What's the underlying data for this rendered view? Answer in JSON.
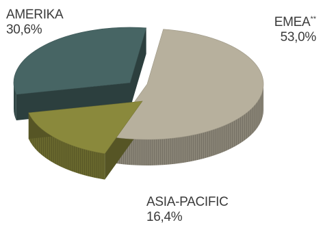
{
  "chart_data": {
    "type": "pie",
    "title": "",
    "slices": [
      {
        "name": "EMEA",
        "marker": "**",
        "value": 53.0,
        "display": "53,0%",
        "color": "#b7b09d"
      },
      {
        "name": "ASIA-PACIFIC",
        "value": 16.4,
        "display": "16,4%",
        "color": "#8a893c"
      },
      {
        "name": "AMERIKA",
        "value": 30.6,
        "display": "30,6%",
        "color": "#476564"
      }
    ],
    "three_d": true,
    "exploded": true,
    "legend": "none"
  }
}
